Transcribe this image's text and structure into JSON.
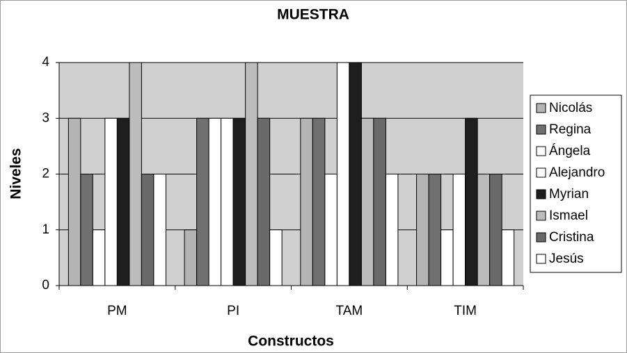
{
  "chart_data": {
    "type": "bar",
    "title": "MUESTRA",
    "xlabel": "Constructos",
    "ylabel": "Niveles",
    "categories": [
      "PM",
      "PI",
      "TAM",
      "TIM"
    ],
    "series": [
      {
        "name": "Nicolás",
        "color": "#b4b4b4",
        "values": [
          3,
          1,
          3,
          2
        ]
      },
      {
        "name": "Regina",
        "color": "#707070",
        "values": [
          2,
          3,
          3,
          2
        ]
      },
      {
        "name": "Ángela",
        "color": "#ffffff",
        "values": [
          1,
          3,
          2,
          1
        ]
      },
      {
        "name": "Alejandro",
        "color": "#ffffff",
        "values": [
          3,
          3,
          4,
          2
        ]
      },
      {
        "name": "Myrian",
        "color": "#1e1e1e",
        "values": [
          3,
          3,
          4,
          3
        ]
      },
      {
        "name": "Ismael",
        "color": "#bcbcbc",
        "values": [
          4,
          4,
          3,
          2
        ]
      },
      {
        "name": "Cristina",
        "color": "#6a6a6a",
        "values": [
          2,
          3,
          3,
          2
        ]
      },
      {
        "name": "Jesús",
        "color": "#ffffff",
        "values": [
          2,
          1,
          2,
          1
        ]
      }
    ],
    "ylim": [
      0,
      4
    ],
    "yticks": [
      0,
      1,
      2,
      3,
      4
    ],
    "grid": true,
    "legend": "right"
  }
}
